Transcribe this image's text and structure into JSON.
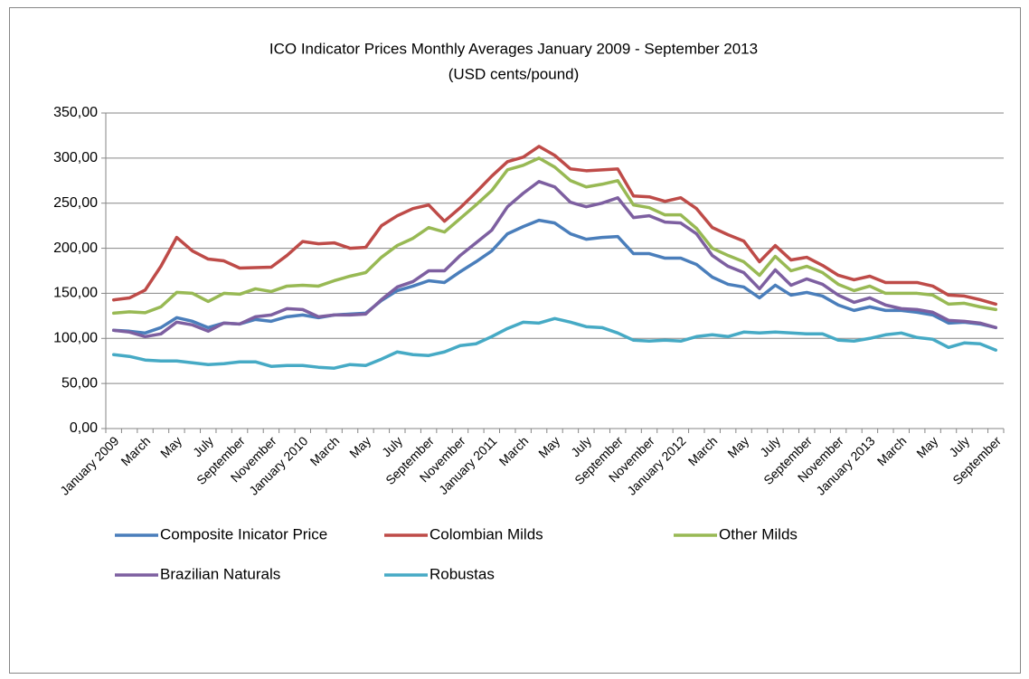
{
  "chart_data": {
    "type": "line",
    "title": "ICO Indicator Prices Monthly Averages January 2009 - September 2013",
    "subtitle": "(USD cents/pound)",
    "categories": [
      "January 2009",
      null,
      "March",
      null,
      "May",
      null,
      "July",
      null,
      "September",
      null,
      "November",
      null,
      "January 2010",
      null,
      "March",
      null,
      "May",
      null,
      "July",
      null,
      "September",
      null,
      "November",
      null,
      "January 2011",
      null,
      "March",
      null,
      "May",
      null,
      "July",
      null,
      "September",
      null,
      "November",
      null,
      "January 2012",
      null,
      "March",
      null,
      "May",
      null,
      "July",
      null,
      "September",
      null,
      "November",
      null,
      "January 2013",
      null,
      "March",
      null,
      "May",
      null,
      "July",
      null,
      "September"
    ],
    "series": [
      {
        "name": "Composite Inicator Price",
        "color": "#4a7ebb",
        "values": [
          109,
          108,
          106,
          112,
          123,
          119,
          112,
          117,
          116,
          121,
          119,
          124,
          126,
          123,
          126,
          127,
          128,
          142,
          153,
          158,
          164,
          162,
          174,
          185,
          197,
          216,
          224,
          231,
          228,
          216,
          210,
          212,
          213,
          194,
          194,
          189,
          189,
          182,
          168,
          160,
          157,
          145,
          159,
          148,
          151,
          147,
          137,
          131,
          135,
          131,
          131,
          129,
          126,
          117,
          118,
          116,
          112
        ]
      },
      {
        "name": "Colombian Milds",
        "color": "#be4b48",
        "values": [
          142.7,
          144.9,
          153.6,
          180,
          212,
          197,
          188,
          186,
          178,
          178.5,
          179,
          192,
          207.5,
          205,
          206,
          200,
          201,
          225,
          236,
          244,
          248,
          230,
          245,
          262,
          280,
          296,
          301,
          313,
          303,
          288,
          286,
          287,
          288,
          258,
          257,
          252,
          256,
          244,
          223,
          215,
          208,
          185,
          203,
          187,
          190,
          181,
          170,
          165,
          169,
          162,
          162,
          162,
          158,
          148,
          147,
          143,
          138
        ]
      },
      {
        "name": "Other Milds",
        "color": "#98b954",
        "values": [
          128,
          129.5,
          128.5,
          135,
          151,
          150,
          141,
          150,
          149,
          155,
          152,
          158,
          159,
          158,
          164,
          169,
          173,
          190,
          203,
          211,
          223,
          218,
          233,
          248,
          264,
          287,
          292,
          300,
          290,
          275,
          268,
          271,
          275,
          248,
          245,
          237,
          237,
          222,
          200,
          192,
          185,
          170,
          191,
          175,
          180,
          173,
          160,
          153,
          158,
          150,
          150,
          150,
          148,
          138,
          139,
          135,
          132
        ]
      },
      {
        "name": "Brazilian Naturals",
        "color": "#7d5fa0",
        "values": [
          109,
          107,
          102,
          105,
          118,
          115,
          108,
          117,
          116,
          124,
          126,
          133,
          132,
          124,
          126,
          126,
          127,
          143,
          157,
          163,
          175,
          175,
          192,
          206,
          220,
          246,
          261,
          274,
          268,
          251,
          246,
          250,
          256,
          234,
          236,
          229,
          228,
          216,
          192,
          180,
          173,
          155,
          176,
          159,
          166,
          160,
          148,
          140,
          145,
          137,
          133,
          132,
          129,
          120,
          119,
          117,
          112
        ]
      },
      {
        "name": "Robustas",
        "color": "#46aac5",
        "values": [
          82,
          80,
          76,
          75,
          75,
          73,
          71,
          72,
          74,
          74,
          69,
          70,
          70,
          68,
          67,
          71,
          70,
          77,
          85,
          82,
          81,
          85,
          92,
          94,
          102,
          111,
          118,
          117,
          122,
          118,
          113,
          112,
          106,
          98,
          97,
          98,
          97,
          102,
          104,
          102,
          107,
          106,
          107,
          106,
          105,
          105,
          98,
          97,
          100,
          104,
          106,
          101,
          99,
          90,
          95,
          94,
          87
        ]
      }
    ],
    "ylim": [
      0,
      350
    ],
    "yticks": [
      {
        "value": 0,
        "label": "0,00"
      },
      {
        "value": 50,
        "label": "50,00"
      },
      {
        "value": 100,
        "label": "100,00"
      },
      {
        "value": 150,
        "label": "150,00"
      },
      {
        "value": 200,
        "label": "200,00"
      },
      {
        "value": 250,
        "label": "250,00"
      },
      {
        "value": 300,
        "label": "300,00"
      },
      {
        "value": 350,
        "label": "350,00"
      }
    ],
    "grid": true,
    "legend": "bottom"
  }
}
